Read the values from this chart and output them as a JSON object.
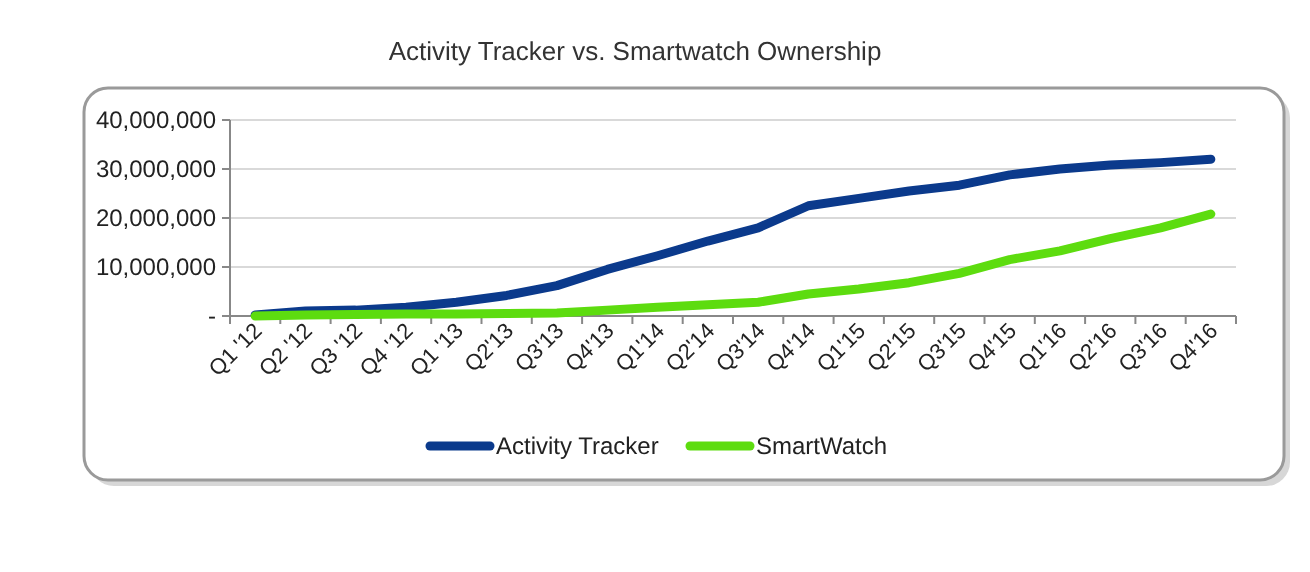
{
  "chart_data": {
    "type": "line",
    "title": "Activity Tracker vs. Smartwatch Ownership",
    "categories": [
      "Q1 '12",
      "Q2 '12",
      "Q3 '12",
      "Q4 '12",
      "Q1 '13",
      "Q2'13",
      "Q3'13",
      "Q4'13",
      "Q1'14",
      "Q2'14",
      "Q3'14",
      "Q4'14",
      "Q1'15",
      "Q2'15",
      "Q3'15",
      "Q4'15",
      "Q1'16",
      "Q2'16",
      "Q3'16",
      "Q4'16"
    ],
    "series": [
      {
        "name": "Activity Tracker",
        "color": "#0b3a8c",
        "values": [
          200000,
          1000000,
          1200000,
          1800000,
          2800000,
          4200000,
          6200000,
          9500000,
          12300000,
          15300000,
          18000000,
          22500000,
          24000000,
          25500000,
          26700000,
          28800000,
          30000000,
          30800000,
          31300000,
          32000000
        ]
      },
      {
        "name": "SmartWatch",
        "color": "#5ddc0f",
        "values": [
          0,
          200000,
          300000,
          400000,
          400000,
          500000,
          600000,
          1200000,
          1800000,
          2300000,
          2800000,
          4500000,
          5500000,
          6800000,
          8700000,
          11500000,
          13300000,
          15800000,
          18000000,
          20800000
        ]
      }
    ],
    "ylim": [
      0,
      40000000
    ],
    "yticks": [
      {
        "value": 0,
        "label": "-"
      },
      {
        "value": 10000000,
        "label": "10,000,000"
      },
      {
        "value": 20000000,
        "label": "20,000,000"
      },
      {
        "value": 30000000,
        "label": "30,000,000"
      },
      {
        "value": 40000000,
        "label": "40,000,000"
      }
    ],
    "grid": "y",
    "legend": "bottom",
    "line_style": "solid",
    "marker": "none"
  }
}
